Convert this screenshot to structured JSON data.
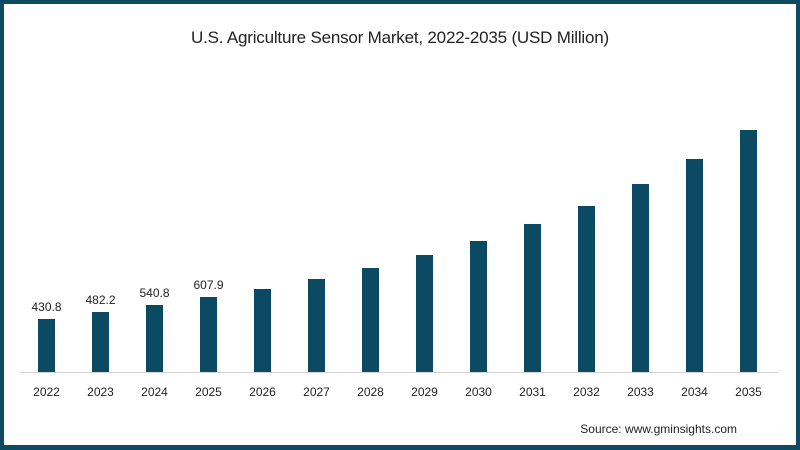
{
  "chart_data": {
    "type": "bar",
    "title": "U.S. Agriculture Sensor Market, 2022-2035 (USD Million)",
    "xlabel": "",
    "ylabel": "USD Million",
    "categories": [
      "2022",
      "2023",
      "2024",
      "2025",
      "2026",
      "2027",
      "2028",
      "2029",
      "2030",
      "2031",
      "2032",
      "2033",
      "2034",
      "2035"
    ],
    "values": [
      430.8,
      482.2,
      540.8,
      607.9,
      672,
      752,
      838,
      942,
      1057,
      1188,
      1338,
      1509,
      1710,
      1945
    ],
    "labeled_values": [
      "430.8",
      "482.2",
      "540.8",
      "607.9",
      "",
      "",
      "",
      "",
      "",
      "",
      "",
      "",
      "",
      ""
    ],
    "ylim": [
      0,
      2000
    ],
    "grid": false,
    "legend": null,
    "bar_color": "#0b4a62",
    "source": "Source: www.gminsights.com"
  },
  "colors": {
    "border": "#0e4a62",
    "bar": "#0b4a62",
    "axis": "#d4d4d4"
  }
}
